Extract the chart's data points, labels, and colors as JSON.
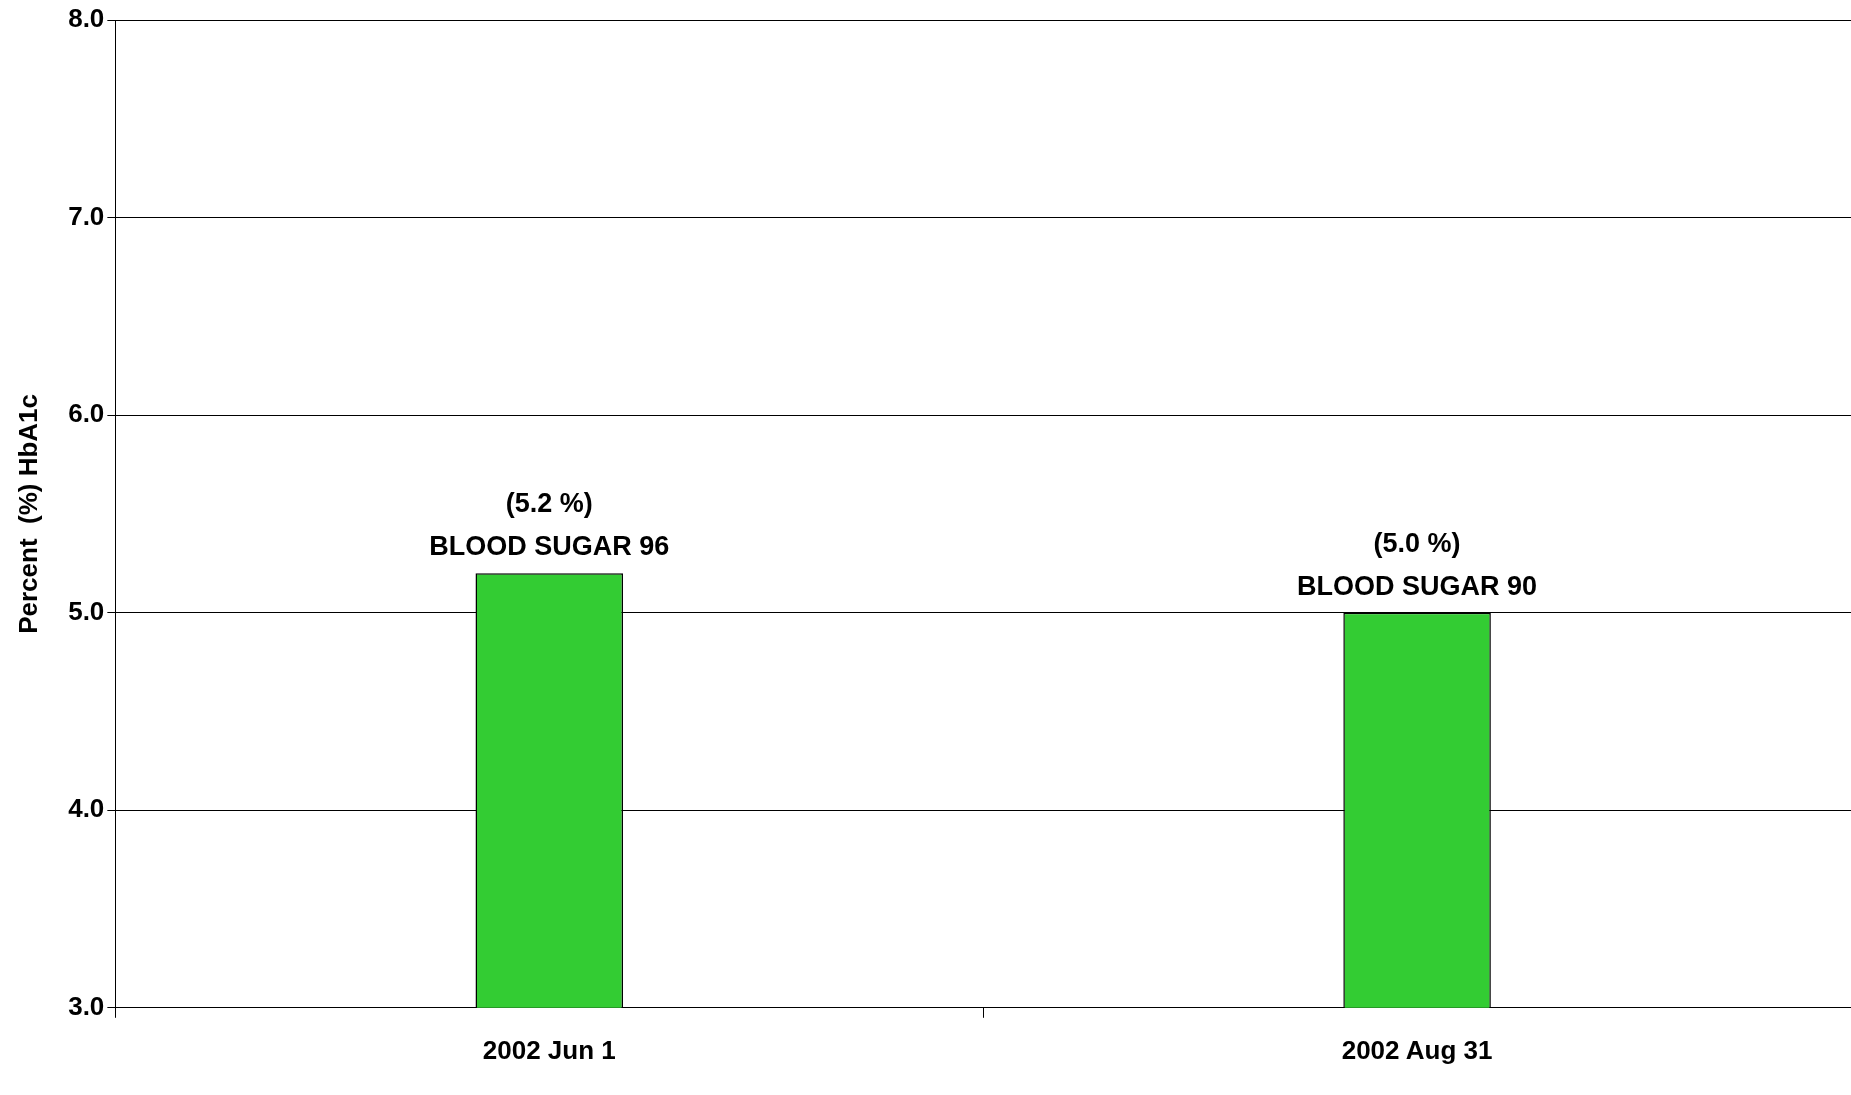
{
  "chart_data": {
    "type": "bar",
    "ylabel": "Percent  (%) HbA1c",
    "categories": [
      "2002 Jun 1",
      "2002 Aug 31"
    ],
    "values": [
      5.2,
      5.0
    ],
    "value_labels": [
      "(5.2 %)\nBLOOD SUGAR 96",
      "(5.0 %)\nBLOOD SUGAR 90"
    ],
    "color": "#33cc33",
    "ylim": [
      3,
      8
    ],
    "yticks": [
      {
        "value": 3,
        "label": "3.0"
      },
      {
        "value": 4,
        "label": "4.0"
      },
      {
        "value": 5,
        "label": "5.0"
      },
      {
        "value": 6,
        "label": "6.0"
      },
      {
        "value": 7,
        "label": "7.0"
      },
      {
        "value": 8,
        "label": "8.0"
      }
    ],
    "grid": "y"
  }
}
